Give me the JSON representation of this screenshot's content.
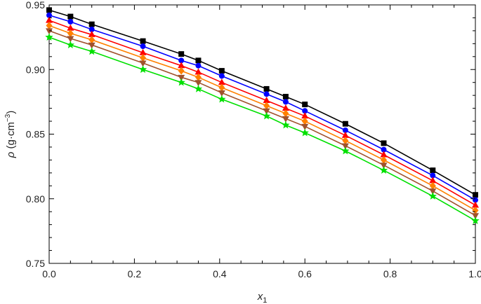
{
  "chart_data": {
    "type": "scatter",
    "xlabel": {
      "base": "x",
      "sub": "1"
    },
    "ylabel": {
      "symbol": "ρ",
      "unit_prefix": " (g·cm",
      "unit_sup": "−3",
      "unit_suffix": ")"
    },
    "xlim": [
      0.0,
      1.0
    ],
    "ylim": [
      0.75,
      0.95
    ],
    "x_ticks": [
      0.0,
      0.2,
      0.4,
      0.6,
      0.8,
      1.0
    ],
    "x_tick_labels": [
      "0.0",
      "0.2",
      "0.4",
      "0.6",
      "0.8",
      "1.0"
    ],
    "y_ticks": [
      0.75,
      0.8,
      0.85,
      0.9,
      0.95
    ],
    "y_tick_labels": [
      "0.75",
      "0.80",
      "0.85",
      "0.90",
      "0.95"
    ],
    "grid": false,
    "legend": "none",
    "x": [
      0.0,
      0.05,
      0.1,
      0.22,
      0.31,
      0.35,
      0.405,
      0.51,
      0.555,
      0.6,
      0.695,
      0.785,
      0.9,
      1.0
    ],
    "series": [
      {
        "marker": "square",
        "color": "#000000",
        "values": [
          0.946,
          0.941,
          0.935,
          0.922,
          0.912,
          0.907,
          0.899,
          0.885,
          0.879,
          0.873,
          0.858,
          0.843,
          0.822,
          0.803
        ]
      },
      {
        "marker": "circle",
        "color": "#0000ff",
        "values": [
          0.942,
          0.937,
          0.931,
          0.918,
          0.907,
          0.903,
          0.895,
          0.881,
          0.875,
          0.868,
          0.853,
          0.838,
          0.818,
          0.799
        ]
      },
      {
        "marker": "triangle-up",
        "color": "#ff0000",
        "values": [
          0.938,
          0.932,
          0.927,
          0.913,
          0.903,
          0.898,
          0.89,
          0.876,
          0.87,
          0.864,
          0.849,
          0.834,
          0.814,
          0.795
        ]
      },
      {
        "marker": "diamond",
        "color": "#ff8000",
        "values": [
          0.934,
          0.928,
          0.923,
          0.909,
          0.899,
          0.894,
          0.886,
          0.872,
          0.866,
          0.86,
          0.845,
          0.83,
          0.81,
          0.791
        ]
      },
      {
        "marker": "triangle-down",
        "color": "#a0522d",
        "values": [
          0.93,
          0.924,
          0.919,
          0.905,
          0.894,
          0.89,
          0.882,
          0.868,
          0.862,
          0.856,
          0.841,
          0.826,
          0.806,
          0.787
        ]
      },
      {
        "marker": "star",
        "color": "#00e000",
        "values": [
          0.925,
          0.919,
          0.914,
          0.9,
          0.89,
          0.885,
          0.877,
          0.864,
          0.857,
          0.851,
          0.837,
          0.822,
          0.802,
          0.783
        ]
      }
    ]
  }
}
